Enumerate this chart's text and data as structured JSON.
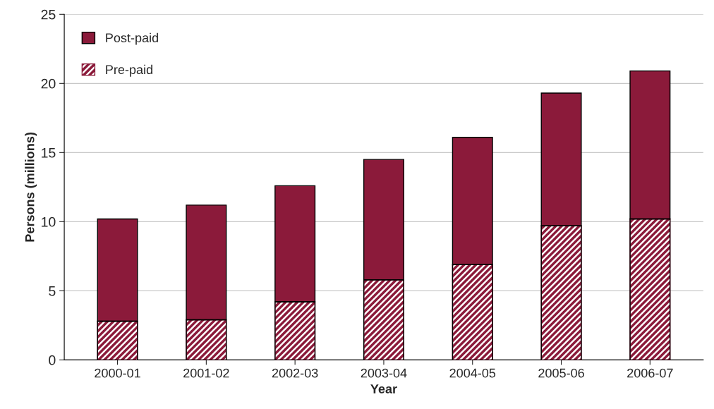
{
  "chart_data": {
    "type": "bar",
    "stacked": true,
    "xlabel": "Year",
    "ylabel": "Persons (millions)",
    "categories": [
      "2000-01",
      "2001-02",
      "2002-03",
      "2003-04",
      "2004-05",
      "2005-06",
      "2006-07"
    ],
    "series": [
      {
        "name": "Pre-paid",
        "color": "#8b1a3a",
        "values": [
          2.8,
          2.9,
          4.2,
          5.8,
          6.9,
          9.7,
          10.2
        ]
      },
      {
        "name": "Post-paid",
        "color": "#8b1a3a",
        "values": [
          7.4,
          8.3,
          8.4,
          8.7,
          9.2,
          9.6,
          10.7
        ]
      }
    ],
    "ylim": [
      0,
      25
    ],
    "yticks": [
      0,
      5,
      10,
      15,
      20,
      25
    ],
    "grid": "y",
    "legend": "top left"
  }
}
